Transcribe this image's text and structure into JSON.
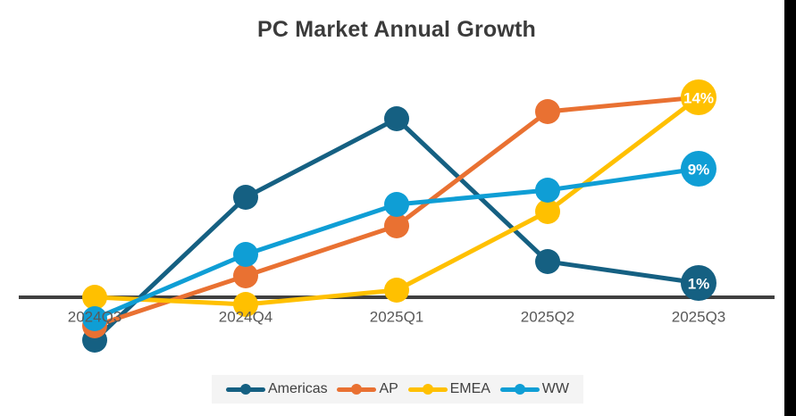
{
  "window": {
    "edge_bar_color": "#000000"
  },
  "chart_data": {
    "type": "line",
    "title": "PC Market Annual Growth",
    "title_color": "#3b3b3b",
    "categories": [
      "2024Q3",
      "2024Q4",
      "2025Q1",
      "2025Q2",
      "2025Q3"
    ],
    "series": [
      {
        "name": "Americas",
        "color": "#156082",
        "values": [
          -3,
          7,
          12.5,
          2.5,
          1
        ],
        "end_label": "1%"
      },
      {
        "name": "AP",
        "color": "#E97132",
        "values": [
          -2,
          1.5,
          5,
          13,
          14
        ],
        "end_label": null
      },
      {
        "name": "EMEA",
        "color": "#FFC000",
        "values": [
          0,
          -0.5,
          0.5,
          6,
          14
        ],
        "end_label": "14%"
      },
      {
        "name": "WW",
        "color": "#0F9ED5",
        "values": [
          -1.5,
          3,
          6.5,
          7.5,
          9
        ],
        "end_label": "9%"
      }
    ],
    "xlabel": "",
    "ylabel": "",
    "ylim": [
      -4,
      16.5
    ],
    "axis": {
      "zero_line_color": "#404040",
      "tick_label_color": "#595959",
      "gridlines": false,
      "y_axis_visible": false
    },
    "data_labels": {
      "text_color": "#ffffff",
      "shown_on": [
        "Americas",
        "EMEA",
        "WW"
      ],
      "values_shown": [
        "1%",
        "14%",
        "9%"
      ]
    },
    "legend": {
      "position": "bottom",
      "background": "#f4f4f4",
      "entries": [
        "Americas",
        "AP",
        "EMEA",
        "WW"
      ]
    }
  }
}
